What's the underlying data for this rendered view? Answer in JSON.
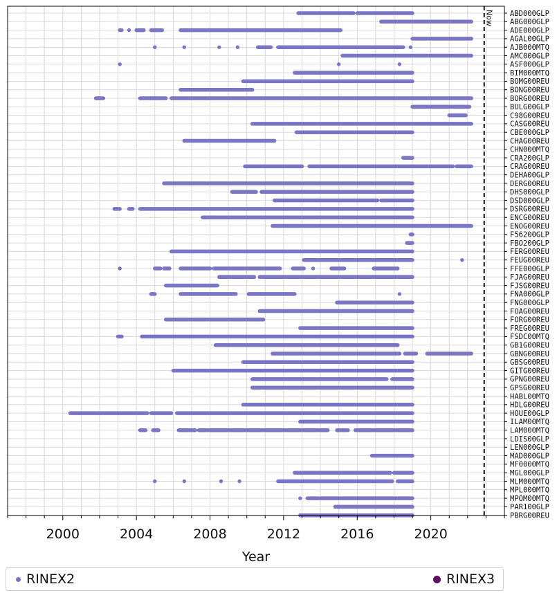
{
  "chart_data": {
    "type": "timeline",
    "xlabel": "Year",
    "xticks": [
      2000,
      2004,
      2008,
      2012,
      2016,
      2020
    ],
    "xlim": [
      1997,
      2024
    ],
    "now_marker": {
      "label": "Now",
      "x": 2022.9
    },
    "legend": [
      {
        "name": "RINEX2",
        "color": "#7b76c4",
        "marker": "small-dot"
      },
      {
        "name": "RINEX3",
        "color": "#5c0f5e",
        "marker": "large-dot"
      }
    ],
    "rows": [
      {
        "station": "ABD000GLP",
        "segments": [
          [
            2012.8,
            2015.8
          ],
          [
            2016.0,
            2019.0
          ]
        ],
        "dots": []
      },
      {
        "station": "ABG000GLP",
        "segments": [
          [
            2017.3,
            2022.2
          ]
        ],
        "dots": []
      },
      {
        "station": "ADE000GLP",
        "segments": [
          [
            2004.0,
            2004.4
          ],
          [
            2004.8,
            2005.4
          ],
          [
            2006.4,
            2015.1
          ]
        ],
        "dots": [
          2003.1,
          2003.2,
          2003.6
        ]
      },
      {
        "station": "AGAL00GLP",
        "segments": [
          [
            2019.0,
            2022.2
          ]
        ],
        "dots": []
      },
      {
        "station": "AJB000MTQ",
        "segments": [
          [
            2010.6,
            2011.3
          ],
          [
            2011.7,
            2018.5
          ]
        ],
        "dots": [
          2005.0,
          2006.6,
          2008.5,
          2009.5,
          2018.9
        ]
      },
      {
        "station": "AMC000GLP",
        "segments": [
          [
            2015.2,
            2022.2
          ]
        ],
        "dots": []
      },
      {
        "station": "ASF000GLP",
        "segments": [],
        "dots": [
          2003.1,
          2015.0,
          2018.3
        ]
      },
      {
        "station": "BIM000MTQ",
        "segments": [
          [
            2012.6,
            2019.0
          ]
        ],
        "dots": []
      },
      {
        "station": "BOMG00REU",
        "segments": [
          [
            2009.8,
            2019.0
          ]
        ],
        "dots": []
      },
      {
        "station": "BONG00REU",
        "segments": [
          [
            2006.4,
            2010.3
          ]
        ],
        "dots": []
      },
      {
        "station": "BORG00REU",
        "segments": [
          [
            2001.8,
            2002.2
          ],
          [
            2004.2,
            2005.6
          ],
          [
            2005.9,
            2022.2
          ]
        ],
        "dots": []
      },
      {
        "station": "BULG00GLP",
        "segments": [
          [
            2019.0,
            2022.1
          ]
        ],
        "dots": []
      },
      {
        "station": "C98G00REU",
        "segments": [
          [
            2021.0,
            2021.9
          ]
        ],
        "dots": []
      },
      {
        "station": "CASG00REU",
        "segments": [
          [
            2010.3,
            2022.2
          ]
        ],
        "dots": []
      },
      {
        "station": "CBE000GLP",
        "segments": [
          [
            2012.7,
            2019.0
          ]
        ],
        "dots": []
      },
      {
        "station": "CHAG00REU",
        "segments": [
          [
            2006.6,
            2011.5
          ]
        ],
        "dots": []
      },
      {
        "station": "CHN000MTQ",
        "segments": [],
        "dots": []
      },
      {
        "station": "CRA200GLP",
        "segments": [
          [
            2018.5,
            2019.0
          ]
        ],
        "dots": []
      },
      {
        "station": "CRAG00REU",
        "segments": [
          [
            2009.9,
            2013.0
          ],
          [
            2013.4,
            2021.2
          ],
          [
            2021.4,
            2022.2
          ]
        ],
        "dots": []
      },
      {
        "station": "DEHA00GLP",
        "segments": [],
        "dots": []
      },
      {
        "station": "DERG00REU",
        "segments": [
          [
            2005.5,
            2019.0
          ]
        ],
        "dots": []
      },
      {
        "station": "DHS000GLP",
        "segments": [
          [
            2009.2,
            2010.5
          ],
          [
            2010.8,
            2019.0
          ]
        ],
        "dots": []
      },
      {
        "station": "DSD000GLP",
        "segments": [
          [
            2011.5,
            2017.1
          ],
          [
            2017.3,
            2019.0
          ]
        ],
        "dots": []
      },
      {
        "station": "DSRG00REU",
        "segments": [
          [
            2002.8,
            2003.1
          ],
          [
            2003.6,
            2003.8
          ],
          [
            2004.2,
            2019.0
          ]
        ],
        "dots": []
      },
      {
        "station": "ENCG00REU",
        "segments": [
          [
            2007.6,
            2019.0
          ]
        ],
        "dots": []
      },
      {
        "station": "ENOG00REU",
        "segments": [
          [
            2011.4,
            2022.2
          ]
        ],
        "dots": []
      },
      {
        "station": "F56200GLP",
        "segments": [
          [
            2018.9,
            2019.0
          ]
        ],
        "dots": []
      },
      {
        "station": "FBO200GLP",
        "segments": [
          [
            2018.7,
            2019.0
          ]
        ],
        "dots": []
      },
      {
        "station": "FERG00REU",
        "segments": [
          [
            2005.9,
            2019.0
          ]
        ],
        "dots": []
      },
      {
        "station": "FEUG00REU",
        "segments": [
          [
            2013.1,
            2019.0
          ]
        ],
        "dots": [
          2021.7
        ]
      },
      {
        "station": "FFE000GLP",
        "segments": [
          [
            2005.0,
            2005.3
          ],
          [
            2005.5,
            2005.8
          ],
          [
            2006.4,
            2008.0
          ],
          [
            2008.2,
            2011.8
          ],
          [
            2012.5,
            2013.1
          ],
          [
            2014.6,
            2015.3
          ],
          [
            2016.9,
            2018.2
          ]
        ],
        "dots": [
          2003.1,
          2013.6
        ]
      },
      {
        "station": "FJAG00REU",
        "segments": [
          [
            2008.5,
            2010.4
          ],
          [
            2010.7,
            2019.0
          ]
        ],
        "dots": []
      },
      {
        "station": "FJSG00REU",
        "segments": [
          [
            2005.6,
            2008.4
          ]
        ],
        "dots": []
      },
      {
        "station": "FNA000GLP",
        "segments": [
          [
            2004.8,
            2005.0
          ],
          [
            2006.4,
            2009.4
          ],
          [
            2010.1,
            2012.6
          ]
        ],
        "dots": [
          2018.3
        ]
      },
      {
        "station": "FNG000GLP",
        "segments": [
          [
            2014.9,
            2019.0
          ]
        ],
        "dots": []
      },
      {
        "station": "FOAG00REU",
        "segments": [
          [
            2010.7,
            2019.0
          ]
        ],
        "dots": []
      },
      {
        "station": "FORG00REU",
        "segments": [
          [
            2005.6,
            2010.9
          ]
        ],
        "dots": []
      },
      {
        "station": "FREG00REU",
        "segments": [
          [
            2012.9,
            2019.0
          ]
        ],
        "dots": []
      },
      {
        "station": "FSDC00MTQ",
        "segments": [
          [
            2003.0,
            2003.2
          ],
          [
            2004.3,
            2019.0
          ]
        ],
        "dots": []
      },
      {
        "station": "GB1G00REU",
        "segments": [
          [
            2008.3,
            2018.2
          ]
        ],
        "dots": []
      },
      {
        "station": "GBNG00REU",
        "segments": [
          [
            2011.4,
            2018.3
          ],
          [
            2018.6,
            2019.2
          ],
          [
            2019.8,
            2022.2
          ]
        ],
        "dots": []
      },
      {
        "station": "GBSG00REU",
        "segments": [
          [
            2009.8,
            2019.0
          ]
        ],
        "dots": []
      },
      {
        "station": "GITG00REU",
        "segments": [
          [
            2006.0,
            2019.0
          ]
        ],
        "dots": []
      },
      {
        "station": "GPNG00REU",
        "segments": [
          [
            2010.3,
            2017.6
          ],
          [
            2017.9,
            2019.0
          ]
        ],
        "dots": []
      },
      {
        "station": "GPSG00REU",
        "segments": [
          [
            2010.3,
            2019.0
          ]
        ],
        "dots": []
      },
      {
        "station": "HABL00MTQ",
        "segments": [],
        "dots": []
      },
      {
        "station": "HDLG00REU",
        "segments": [
          [
            2009.8,
            2019.0
          ]
        ],
        "dots": []
      },
      {
        "station": "HOUE00GLP",
        "segments": [
          [
            2000.4,
            2004.6
          ],
          [
            2004.8,
            2005.9
          ],
          [
            2006.2,
            2019.0
          ]
        ],
        "dots": []
      },
      {
        "station": "ILAM00MTQ",
        "segments": [
          [
            2012.9,
            2019.0
          ]
        ],
        "dots": []
      },
      {
        "station": "LAM000MTQ",
        "segments": [
          [
            2004.2,
            2004.5
          ],
          [
            2004.9,
            2005.2
          ],
          [
            2006.3,
            2007.2
          ],
          [
            2007.4,
            2014.4
          ],
          [
            2014.9,
            2015.5
          ],
          [
            2015.9,
            2019.0
          ]
        ],
        "dots": []
      },
      {
        "station": "LDIS00GLP",
        "segments": [],
        "dots": []
      },
      {
        "station": "LEN000GLP",
        "segments": [],
        "dots": []
      },
      {
        "station": "MAD000GLP",
        "segments": [
          [
            2016.8,
            2019.0
          ]
        ],
        "dots": []
      },
      {
        "station": "MF0000MTQ",
        "segments": [],
        "dots": []
      },
      {
        "station": "MGL000GLP",
        "segments": [
          [
            2012.6,
            2017.8
          ],
          [
            2018.0,
            2019.0
          ]
        ],
        "dots": []
      },
      {
        "station": "MLM000MTQ",
        "segments": [
          [
            2011.7,
            2017.9
          ],
          [
            2018.2,
            2019.0
          ]
        ],
        "dots": [
          2005.0,
          2006.6,
          2008.6,
          2009.6
        ]
      },
      {
        "station": "MPL000MTQ",
        "segments": [],
        "dots": []
      },
      {
        "station": "MPOM00MTQ",
        "segments": [
          [
            2013.3,
            2013.9
          ],
          [
            2014.0,
            2019.0
          ]
        ],
        "dots": [
          2012.9
        ]
      },
      {
        "station": "PAR100GLP",
        "segments": [
          [
            2014.8,
            2019.0
          ]
        ],
        "dots": []
      },
      {
        "station": "PBRG00REU",
        "segments": [
          [
            2012.9,
            2019.0
          ]
        ],
        "dots": []
      }
    ]
  }
}
